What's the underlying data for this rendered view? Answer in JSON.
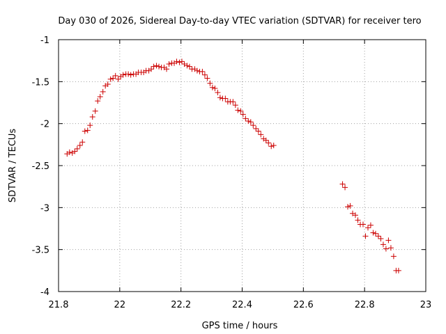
{
  "chart_data": {
    "type": "scatter",
    "title": "Day 030 of 2026, Sidereal Day-to-day VTEC variation (SDTVAR) for receiver tero",
    "xlabel": "GPS time / hours",
    "ylabel": "SDTVAR / TECUs",
    "xlim": [
      21.8,
      23.0
    ],
    "ylim": [
      -4.0,
      -1.0
    ],
    "xticks": [
      21.8,
      22.0,
      22.2,
      22.4,
      22.6,
      22.8,
      23.0
    ],
    "xtick_labels": [
      "21.8",
      "22",
      "22.2",
      "22.4",
      "22.6",
      "22.8",
      "23"
    ],
    "yticks": [
      -4.0,
      -3.5,
      -3.0,
      -2.5,
      -2.0,
      -1.5,
      -1.0
    ],
    "ytick_labels": [
      "-4",
      "-3.5",
      "-3",
      "-2.5",
      "-2",
      "-1.5",
      "-1"
    ],
    "grid": true,
    "marker": "+",
    "color": "#cc0000",
    "series": [
      {
        "name": "SDTVAR",
        "x": [
          21.828,
          21.836,
          21.845,
          21.853,
          21.861,
          21.87,
          21.878,
          21.886,
          21.895,
          21.903,
          21.911,
          21.92,
          21.928,
          21.936,
          21.945,
          21.953,
          21.961,
          21.97,
          21.978,
          21.986,
          21.995,
          22.003,
          22.011,
          22.02,
          22.028,
          22.036,
          22.045,
          22.053,
          22.061,
          22.07,
          22.078,
          22.086,
          22.095,
          22.103,
          22.111,
          22.12,
          22.128,
          22.136,
          22.145,
          22.153,
          22.161,
          22.17,
          22.178,
          22.186,
          22.195,
          22.203,
          22.211,
          22.22,
          22.228,
          22.236,
          22.245,
          22.253,
          22.261,
          22.27,
          22.278,
          22.286,
          22.295,
          22.303,
          22.311,
          22.32,
          22.328,
          22.336,
          22.345,
          22.353,
          22.361,
          22.37,
          22.378,
          22.386,
          22.395,
          22.403,
          22.411,
          22.42,
          22.428,
          22.436,
          22.445,
          22.453,
          22.461,
          22.47,
          22.478,
          22.486,
          22.495,
          22.503,
          22.728,
          22.736,
          22.745,
          22.753,
          22.761,
          22.77,
          22.778,
          22.786,
          22.795,
          22.803,
          22.811,
          22.82,
          22.828,
          22.836,
          22.845,
          22.853,
          22.861,
          22.87,
          22.878,
          22.886,
          22.895,
          22.903,
          22.911
        ],
        "y": [
          -2.36,
          -2.34,
          -2.35,
          -2.33,
          -2.3,
          -2.26,
          -2.22,
          -2.09,
          -2.08,
          -2.02,
          -1.92,
          -1.85,
          -1.73,
          -1.68,
          -1.62,
          -1.55,
          -1.53,
          -1.47,
          -1.46,
          -1.43,
          -1.47,
          -1.44,
          -1.42,
          -1.41,
          -1.41,
          -1.42,
          -1.41,
          -1.41,
          -1.39,
          -1.39,
          -1.39,
          -1.37,
          -1.37,
          -1.35,
          -1.32,
          -1.31,
          -1.32,
          -1.33,
          -1.33,
          -1.35,
          -1.29,
          -1.28,
          -1.28,
          -1.26,
          -1.27,
          -1.26,
          -1.29,
          -1.31,
          -1.32,
          -1.35,
          -1.35,
          -1.37,
          -1.38,
          -1.38,
          -1.42,
          -1.46,
          -1.52,
          -1.57,
          -1.58,
          -1.63,
          -1.69,
          -1.7,
          -1.7,
          -1.74,
          -1.74,
          -1.74,
          -1.78,
          -1.84,
          -1.85,
          -1.89,
          -1.94,
          -1.97,
          -1.98,
          -2.02,
          -2.06,
          -2.09,
          -2.13,
          -2.18,
          -2.2,
          -2.23,
          -2.27,
          -2.26,
          -2.72,
          -2.76,
          -2.99,
          -2.98,
          -3.07,
          -3.09,
          -3.15,
          -3.2,
          -3.2,
          -3.34,
          -3.24,
          -3.21,
          -3.3,
          -3.31,
          -3.34,
          -3.37,
          -3.44,
          -3.49,
          -3.39,
          -3.48,
          -3.58,
          -3.75,
          -3.75
        ]
      }
    ]
  }
}
